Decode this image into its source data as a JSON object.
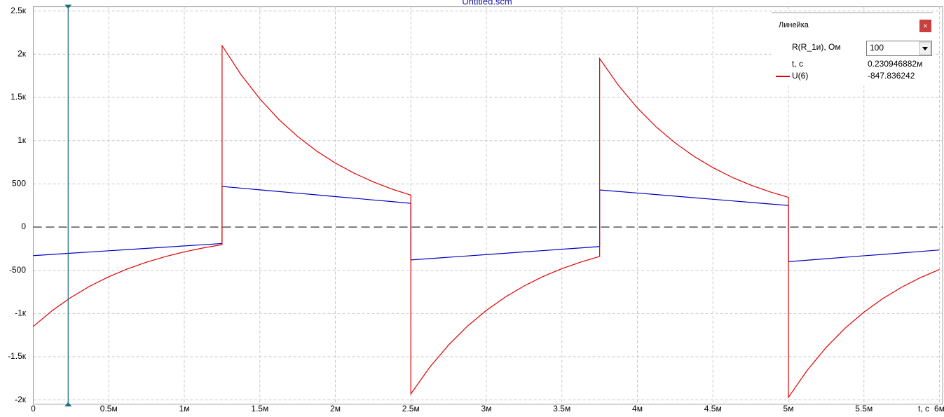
{
  "chart_data": {
    "type": "line",
    "title": "Untitled.scm",
    "x": [
      0,
      0.000125,
      0.00025,
      0.000375,
      0.0005,
      0.000625,
      0.00075,
      0.000875,
      0.001,
      0.001125,
      0.00125,
      0.00125,
      0.001375,
      0.0015,
      0.001625,
      0.00175,
      0.001875,
      0.002,
      0.002125,
      0.00225,
      0.002375,
      0.0025,
      0.0025,
      0.002625,
      0.00275,
      0.002875,
      0.003,
      0.003125,
      0.00325,
      0.003375,
      0.0035,
      0.003625,
      0.00375,
      0.00375,
      0.003875,
      0.004,
      0.004125,
      0.00425,
      0.004375,
      0.0045,
      0.004625,
      0.00475,
      0.004875,
      0.005,
      0.005,
      0.005125,
      0.00525,
      0.005375,
      0.0055,
      0.005625,
      0.00575,
      0.005875,
      0.006
    ],
    "series": [
      {
        "name": "U(6)",
        "color": "#e00000",
        "values": [
          -1150,
          -967,
          -813,
          -683,
          -574,
          -483,
          -406,
          -341,
          -287,
          -241,
          -203,
          2100,
          1765,
          1484,
          1247,
          1049,
          881,
          741,
          623,
          524,
          440,
          370,
          -1930,
          -1622,
          -1364,
          -1146,
          -964,
          -810,
          -681,
          -572,
          -481,
          -405,
          -340,
          1950,
          1639,
          1378,
          1158,
          974,
          818,
          688,
          578,
          486,
          409,
          344,
          -1970,
          -1656,
          -1392,
          -1170,
          -984,
          -827,
          -695,
          -584,
          -491
        ]
      },
      {
        "color": "#0000c0",
        "values": [
          -330,
          -316,
          -302,
          -288,
          -274,
          -260,
          -246,
          -232,
          -218,
          -204,
          -190,
          470,
          451,
          431,
          412,
          392,
          373,
          353,
          334,
          314,
          295,
          275,
          -380,
          -365,
          -349,
          -334,
          -318,
          -303,
          -287,
          -272,
          -256,
          -241,
          -225,
          430,
          412,
          394,
          376,
          358,
          340,
          322,
          304,
          286,
          268,
          250,
          -400,
          -383,
          -366,
          -349,
          -332,
          -316,
          -299,
          -282,
          -265
        ]
      }
    ],
    "xlim": [
      0,
      0.006
    ],
    "ylim": [
      -2050,
      2550
    ],
    "xticks": [
      0,
      {
        "value": 0.0005,
        "label": "0.5м"
      },
      {
        "value": 0.001,
        "label": "1м"
      },
      {
        "value": 0.0015,
        "label": "1.5м"
      },
      {
        "value": 0.002,
        "label": "2м"
      },
      {
        "value": 0.0025,
        "label": "2.5м"
      },
      {
        "value": 0.003,
        "label": "3м"
      },
      {
        "value": 0.0035,
        "label": "3.5м"
      },
      {
        "value": 0.004,
        "label": "4м"
      },
      {
        "value": 0.0045,
        "label": "4.5м"
      },
      {
        "value": 0.005,
        "label": "5м"
      },
      {
        "value": 0.0055,
        "label": "5.5м"
      },
      {
        "value": 0.006,
        "label": "6м"
      }
    ],
    "yticks": [
      {
        "value": -2000,
        "label": "-2к"
      },
      {
        "value": -1500,
        "label": "-1.5к"
      },
      {
        "value": -1000,
        "label": "-1к"
      },
      -500,
      0,
      500,
      {
        "value": 1000,
        "label": "1к"
      },
      {
        "value": 1500,
        "label": "1.5к"
      },
      {
        "value": 2000,
        "label": "2к"
      },
      {
        "value": 2500,
        "label": "2.5к"
      }
    ],
    "xlabel": "t, с",
    "grid": true,
    "cursor": {
      "value": 0.000230946882,
      "label": "0.230946882м"
    }
  },
  "ruler": {
    "title": "Линейка",
    "param_label": "R(R_1и), Ом",
    "param_value": 100,
    "t_label": "t, с",
    "u_value": -847.836242
  }
}
